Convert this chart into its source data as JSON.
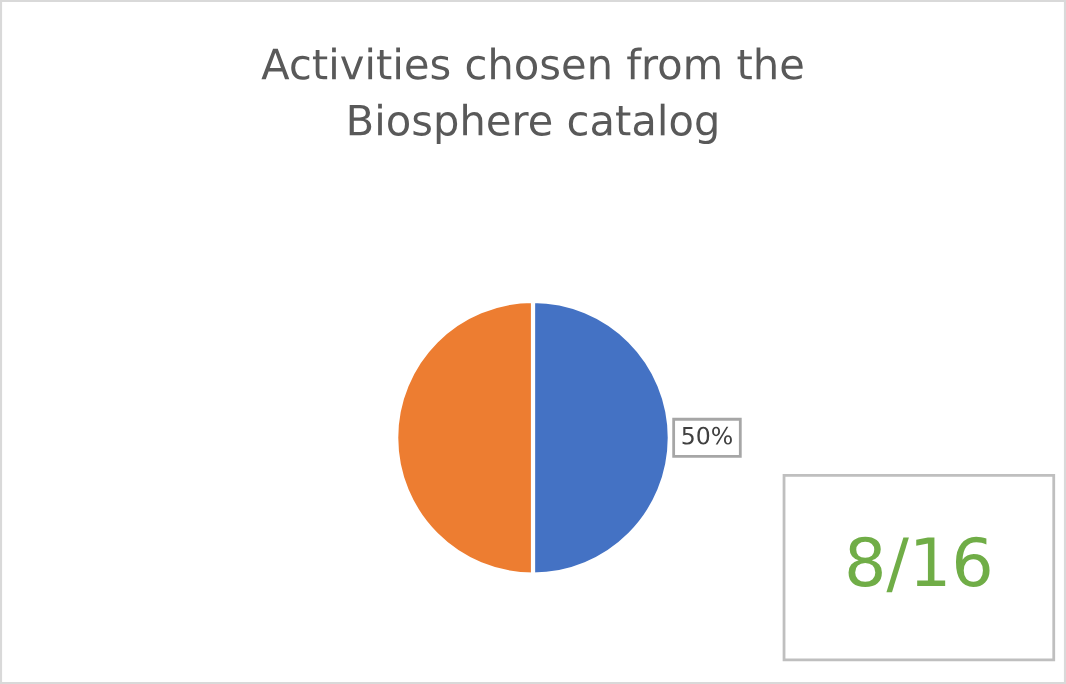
{
  "chart_data": {
    "type": "pie",
    "title": "Activities chosen from the\nBiosphere catalog",
    "categories": [
      null,
      null
    ],
    "values": [
      50,
      50
    ],
    "colors": [
      "#4472c4",
      "#ed7d31"
    ],
    "value_labels": [
      "50%",
      null
    ],
    "annotations": [
      "8/16"
    ]
  }
}
